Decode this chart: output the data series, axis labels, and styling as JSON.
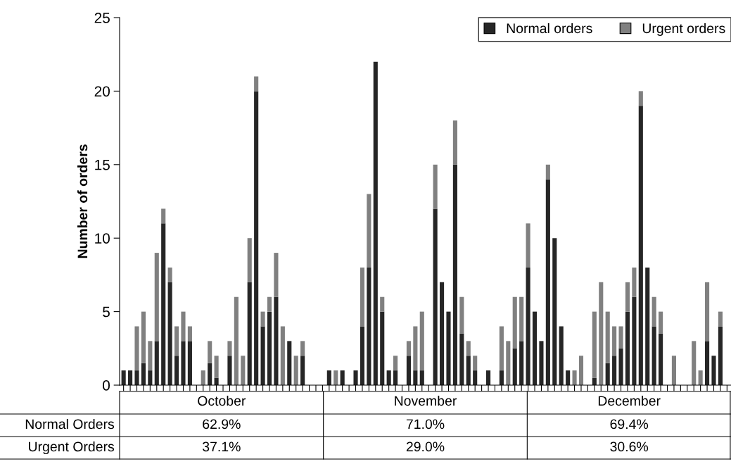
{
  "chart_data": {
    "type": "bar",
    "stacked": true,
    "ylabel": "Number of orders",
    "categories": [
      null,
      null,
      null,
      null,
      null,
      null,
      null,
      null,
      null,
      null,
      null,
      null,
      null,
      null,
      null,
      null,
      null,
      null,
      null,
      null,
      null,
      null,
      null,
      null,
      null,
      null,
      null,
      null,
      null,
      null,
      null,
      null,
      null,
      null,
      null,
      null,
      null,
      null,
      null,
      null,
      null,
      null,
      null,
      null,
      null,
      null,
      null,
      null,
      null,
      null,
      null,
      null,
      null,
      null,
      null,
      null,
      null,
      null,
      null,
      null,
      null,
      null,
      null,
      null,
      null,
      null,
      null,
      null,
      null,
      null,
      null,
      null,
      null,
      null,
      null,
      null,
      null,
      null,
      null,
      null,
      null,
      null,
      null,
      null,
      null,
      null,
      null,
      null,
      null,
      null,
      null,
      null
    ],
    "series": [
      {
        "name": "Normal orders",
        "color": "#262626",
        "values": [
          1,
          1,
          1,
          1.5,
          1,
          3,
          11,
          7,
          2,
          3,
          3,
          0,
          0,
          1.5,
          0.5,
          0,
          2,
          0,
          0,
          7,
          20,
          4,
          5,
          6,
          0,
          3,
          0,
          2,
          0,
          0,
          0,
          1,
          0,
          1,
          0,
          1,
          4,
          8,
          22,
          5,
          1,
          1,
          0,
          2,
          1,
          1,
          0,
          12,
          7,
          5,
          15,
          3.5,
          2,
          1,
          0,
          1,
          0,
          1,
          0,
          2.5,
          3,
          8,
          5,
          3,
          14,
          10,
          4,
          1,
          0,
          0,
          0,
          0.5,
          0,
          1.5,
          2,
          2.5,
          5,
          6,
          19,
          8,
          4,
          3.5,
          0,
          0,
          0,
          0,
          0,
          0,
          3,
          2,
          4,
          0
        ]
      },
      {
        "name": "Urgent orders",
        "color": "#808080",
        "values": [
          0,
          0,
          3,
          3.5,
          2,
          6,
          1,
          1,
          2,
          2,
          1,
          0,
          1,
          1.5,
          1.5,
          0,
          1,
          6,
          2,
          3,
          1,
          1,
          1,
          3,
          4,
          0,
          2,
          1,
          0,
          0,
          0,
          0,
          1,
          0,
          0,
          0,
          4,
          5,
          0,
          1,
          0,
          1,
          0,
          1,
          3,
          4,
          0,
          3,
          0,
          0,
          3,
          2.5,
          1,
          1,
          0,
          0,
          0,
          3,
          3,
          3.5,
          3,
          3,
          0,
          0,
          1,
          0,
          0,
          0,
          1,
          2,
          0,
          4.5,
          7,
          3.5,
          2,
          1.5,
          2,
          2,
          1,
          0,
          2,
          1.5,
          0,
          2,
          0,
          0,
          3,
          1,
          4,
          0,
          1,
          0
        ]
      }
    ],
    "ylim": [
      0,
      25
    ],
    "yticks": [
      0,
      5,
      10,
      15,
      20,
      25
    ],
    "legend": "top right",
    "annotations": [
      "October",
      "November",
      "December",
      "Normal Orders",
      "62.9%",
      "71.0%",
      "69.4%",
      "Urgent Orders",
      "37.1%",
      "29.0%",
      "30.6%"
    ]
  }
}
